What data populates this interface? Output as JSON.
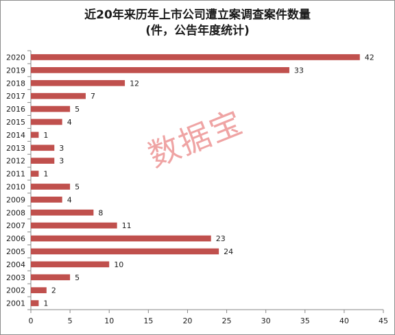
{
  "chart_data": {
    "type": "bar",
    "orientation": "horizontal",
    "title": "近20年来历年上市公司遭立案调查案件数量",
    "subtitle": "(件，公告年度统计)",
    "categories": [
      "2020",
      "2019",
      "2018",
      "2017",
      "2016",
      "2015",
      "2014",
      "2013",
      "2012",
      "2011",
      "2010",
      "2009",
      "2008",
      "2007",
      "2006",
      "2005",
      "2004",
      "2003",
      "2002",
      "2001"
    ],
    "values": [
      42,
      33,
      12,
      7,
      5,
      4,
      1,
      3,
      3,
      1,
      5,
      4,
      8,
      11,
      23,
      24,
      10,
      5,
      2,
      1
    ],
    "xlim": [
      0,
      45
    ],
    "xticks": [
      0,
      5,
      10,
      15,
      20,
      25,
      30,
      35,
      40,
      45
    ],
    "grid": false,
    "legend": "none",
    "data_labels": true,
    "bar_color": "#c0504d"
  },
  "watermark": "数据宝"
}
